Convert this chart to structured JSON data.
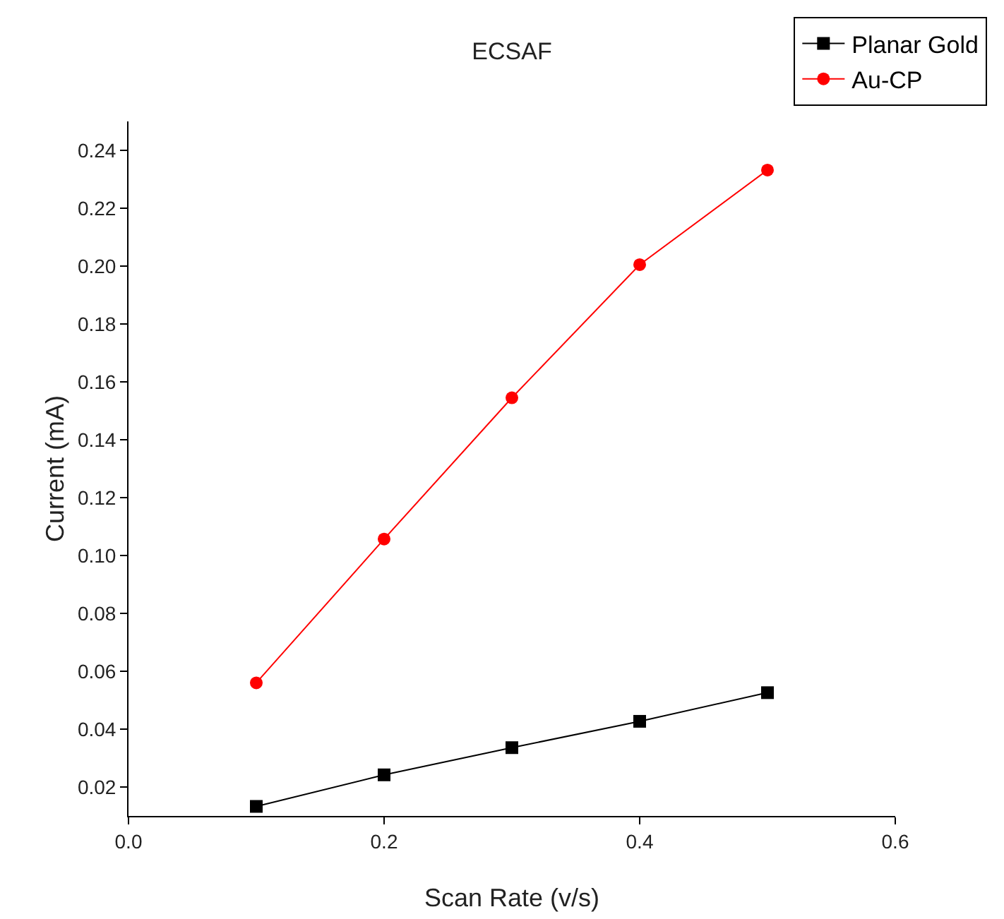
{
  "chart_data": {
    "type": "line",
    "title": "ECSAF",
    "xlabel": "Scan Rate (v/s)",
    "ylabel": "Current (mA)",
    "x": [
      0.1,
      0.2,
      0.3,
      0.4,
      0.5
    ],
    "series": [
      {
        "name": "Planar Gold",
        "color": "#000000",
        "marker": "square",
        "values": [
          0.0133,
          0.0242,
          0.0336,
          0.0427,
          0.0526
        ]
      },
      {
        "name": "Au-CP",
        "color": "#ff0000",
        "marker": "circle",
        "values": [
          0.056,
          0.1057,
          0.1545,
          0.2005,
          0.2332
        ]
      }
    ],
    "xlim": [
      0,
      0.6
    ],
    "xticks": [
      {
        "value": 0,
        "label": "0.0"
      },
      {
        "value": 0.2,
        "label": "0.2"
      },
      {
        "value": 0.4,
        "label": "0.4"
      },
      {
        "value": 0.6,
        "label": "0.6"
      }
    ],
    "ylim": [
      0.01,
      0.25
    ],
    "yticks": [
      {
        "value": 0.02,
        "label": "0.02"
      },
      {
        "value": 0.04,
        "label": "0.04"
      },
      {
        "value": 0.06,
        "label": "0.06"
      },
      {
        "value": 0.08,
        "label": "0.08"
      },
      {
        "value": 0.1,
        "label": "0.10"
      },
      {
        "value": 0.12,
        "label": "0.12"
      },
      {
        "value": 0.14,
        "label": "0.14"
      },
      {
        "value": 0.16,
        "label": "0.16"
      },
      {
        "value": 0.18,
        "label": "0.18"
      },
      {
        "value": 0.2,
        "label": "0.20"
      },
      {
        "value": 0.22,
        "label": "0.22"
      },
      {
        "value": 0.24,
        "label": "0.24"
      }
    ],
    "grid": false,
    "legend": "top right",
    "line_style": "solid"
  }
}
